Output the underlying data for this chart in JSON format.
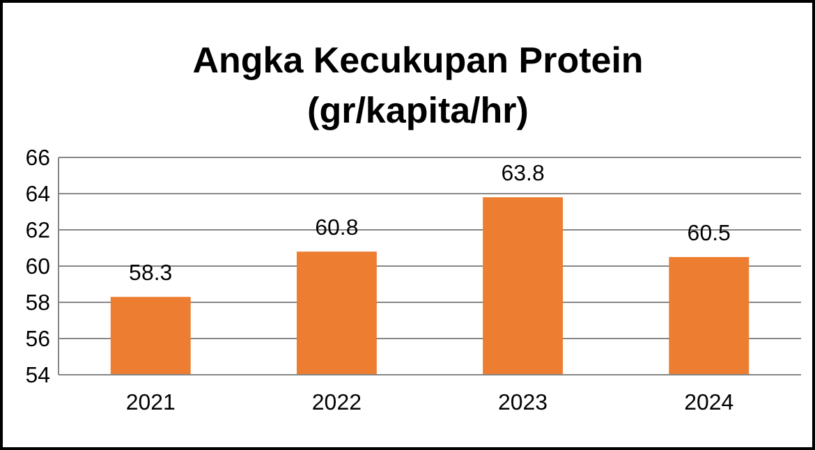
{
  "chart_data": {
    "type": "bar",
    "title": "Angka Kecukupan Protein\n(gr/kapita/hr)",
    "categories": [
      "2021",
      "2022",
      "2023",
      "2024"
    ],
    "values": [
      58.3,
      60.8,
      63.8,
      60.5
    ],
    "color": "#ed7d31",
    "ylim": [
      54,
      66
    ],
    "yticks": [
      54,
      56,
      58,
      60,
      62,
      64,
      66
    ],
    "grid": "y",
    "data_labels": true
  }
}
